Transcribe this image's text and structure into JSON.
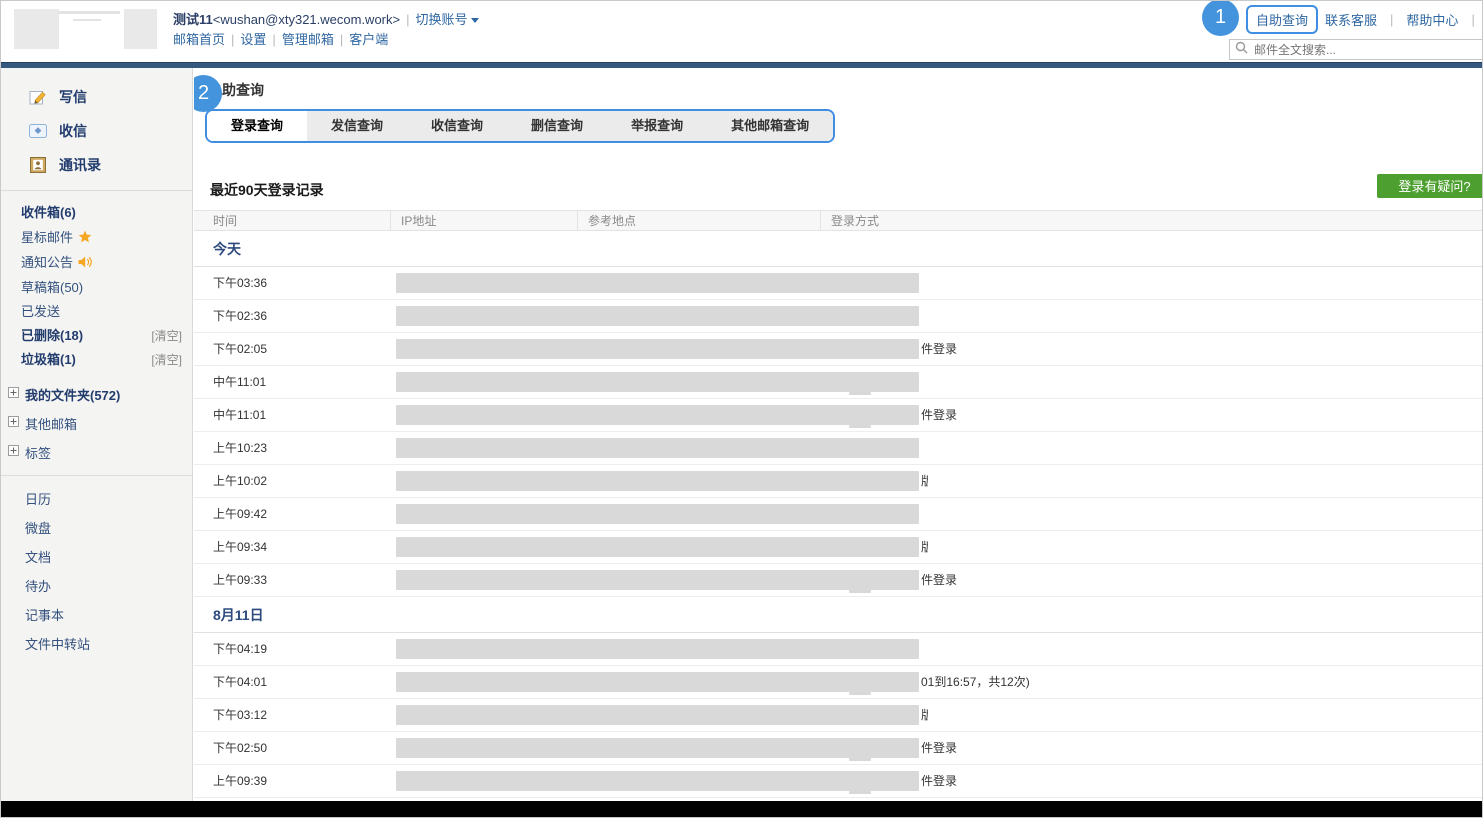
{
  "header": {
    "account_name": "测试11",
    "account_address": "<wushan@xty321.wecom.work>",
    "switch_account": "切换账号",
    "nav_links": [
      "邮箱首页",
      "设置",
      "管理邮箱",
      "客户端"
    ],
    "callout_1": "1",
    "right_links": [
      {
        "name": "self-service-query-link",
        "label": "自助查询",
        "highlighted": true
      },
      {
        "name": "contact-support-link",
        "label": "联系客服",
        "highlighted": false
      },
      {
        "name": "help-center-link",
        "label": "帮助中心",
        "highlighted": false
      }
    ],
    "search_placeholder": "邮件全文搜索..."
  },
  "sidebar": {
    "actions": [
      {
        "name": "compose-button",
        "icon": "compose-icon",
        "label": "写信"
      },
      {
        "name": "receive-button",
        "icon": "receive-mail-icon",
        "label": "收信"
      },
      {
        "name": "contacts-button",
        "icon": "contacts-icon",
        "label": "通讯录"
      }
    ],
    "folders": [
      {
        "name": "folder-inbox",
        "label": "收件箱(6)",
        "bold": true
      },
      {
        "name": "folder-starred",
        "label": "星标邮件",
        "icon": "star-icon"
      },
      {
        "name": "folder-announcements",
        "label": "通知公告",
        "icon": "speaker-icon"
      },
      {
        "name": "folder-drafts",
        "label": "草稿箱(50)"
      },
      {
        "name": "folder-sent",
        "label": "已发送"
      },
      {
        "name": "folder-deleted",
        "label": "已删除(18)",
        "bold": true,
        "action": "[清空]"
      },
      {
        "name": "folder-spam",
        "label": "垃圾箱(1)",
        "bold": true,
        "action": "[清空]"
      }
    ],
    "trees": [
      {
        "name": "tree-my-folders",
        "label": "我的文件夹(572)",
        "bold": true
      },
      {
        "name": "tree-other-mailboxes",
        "label": "其他邮箱",
        "bold": false
      },
      {
        "name": "tree-tags",
        "label": "标签",
        "bold": false
      }
    ],
    "apps": [
      {
        "name": "app-calendar",
        "label": "日历"
      },
      {
        "name": "app-drive",
        "label": "微盘"
      },
      {
        "name": "app-docs",
        "label": "文档"
      },
      {
        "name": "app-todo",
        "label": "待办"
      },
      {
        "name": "app-notes",
        "label": "记事本"
      },
      {
        "name": "app-file-transfer",
        "label": "文件中转站"
      }
    ]
  },
  "main": {
    "callout_2": "2",
    "title": "自助查询",
    "tabs": [
      {
        "name": "tab-login-query",
        "label": "登录查询",
        "active": true
      },
      {
        "name": "tab-send-query",
        "label": "发信查询",
        "active": false
      },
      {
        "name": "tab-receive-query",
        "label": "收信查询",
        "active": false
      },
      {
        "name": "tab-delete-query",
        "label": "删信查询",
        "active": false
      },
      {
        "name": "tab-report-query",
        "label": "举报查询",
        "active": false
      },
      {
        "name": "tab-other-mailbox-query",
        "label": "其他邮箱查询",
        "active": false
      }
    ],
    "records_title": "最近90天登录记录",
    "doubt_button": "登录有疑问?",
    "columns": [
      "时间",
      "IP地址",
      "参考地点",
      "登录方式"
    ],
    "groups": [
      {
        "date": "今天",
        "rows": [
          {
            "time": "下午03:36",
            "trail": "",
            "partial": "",
            "smudge": false
          },
          {
            "time": "下午02:36",
            "trail": "",
            "partial": "",
            "smudge": false
          },
          {
            "time": "下午02:05",
            "trail": "件登录",
            "partial": "",
            "smudge": false
          },
          {
            "time": "中午11:01",
            "trail": "",
            "partial": "",
            "smudge": true
          },
          {
            "time": "中午11:01",
            "trail": "件登录",
            "partial": "",
            "smudge": true
          },
          {
            "time": "上午10:23",
            "trail": "",
            "partial": "",
            "smudge": false
          },
          {
            "time": "上午10:02",
            "trail": "",
            "partial": "版",
            "smudge": false
          },
          {
            "time": "上午09:42",
            "trail": "",
            "partial": "",
            "smudge": false
          },
          {
            "time": "上午09:34",
            "trail": "",
            "partial": "版",
            "smudge": false
          },
          {
            "time": "上午09:33",
            "trail": "件登录",
            "partial": "",
            "smudge": true
          }
        ]
      },
      {
        "date": "8月11日",
        "rows": [
          {
            "time": "下午04:19",
            "trail": "",
            "partial": "",
            "smudge": false
          },
          {
            "time": "下午04:01",
            "trail": "01到16:57，共12次)",
            "partial": "",
            "smudge": true
          },
          {
            "time": "下午03:12",
            "trail": "",
            "partial": "版",
            "smudge": false
          },
          {
            "time": "下午02:50",
            "trail": "件登录",
            "partial": "",
            "smudge": true
          },
          {
            "time": "上午09:39",
            "trail": "件登录",
            "partial": "",
            "smudge": true
          }
        ]
      }
    ]
  },
  "colors": {
    "accent_blue": "#4393dd",
    "callout_border": "#3f8ee3",
    "navy_bar": "#35597e",
    "link_blue": "#2f67a2",
    "green_button": "#4d9f2f",
    "redaction_gray": "#d9d9d9",
    "sidebar_text": "#33507e"
  }
}
